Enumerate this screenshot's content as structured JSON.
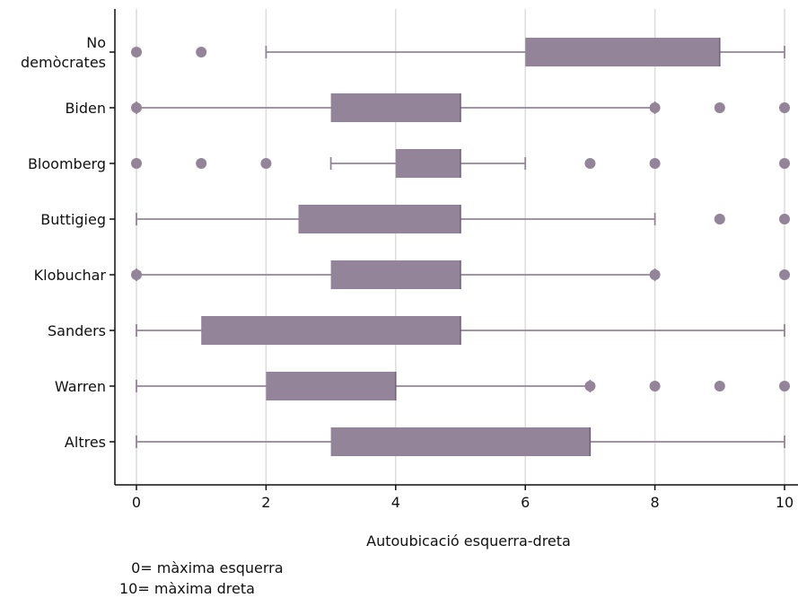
{
  "chart_data": {
    "type": "boxplot",
    "orientation": "horizontal",
    "xlabel": "Autoubicació esquerra-dreta",
    "xlim": [
      0,
      10
    ],
    "xticks": [
      0,
      2,
      4,
      6,
      8,
      10
    ],
    "grid": {
      "vertical": true,
      "horizontal": false
    },
    "color": "#94849a",
    "categories": [
      {
        "label_lines": [
          "No",
          "demòcrates"
        ],
        "whisker_low": 2,
        "q1": 6,
        "median": 9,
        "q3": 9,
        "whisker_high": 10,
        "outliers": [
          0,
          1
        ]
      },
      {
        "label_lines": [
          "Biden"
        ],
        "whisker_low": 0,
        "q1": 3,
        "median": 5,
        "q3": 5,
        "whisker_high": 8,
        "outliers": [
          0,
          8,
          9,
          10
        ]
      },
      {
        "label_lines": [
          "Bloomberg"
        ],
        "whisker_low": 3,
        "q1": 4,
        "median": 5,
        "q3": 5,
        "whisker_high": 6,
        "outliers": [
          0,
          1,
          2,
          7,
          8,
          10
        ]
      },
      {
        "label_lines": [
          "Buttigieg"
        ],
        "whisker_low": 0,
        "q1": 2.5,
        "median": 5,
        "q3": 5,
        "whisker_high": 8,
        "outliers": [
          9,
          10
        ]
      },
      {
        "label_lines": [
          "Klobuchar"
        ],
        "whisker_low": 0,
        "q1": 3,
        "median": 5,
        "q3": 5,
        "whisker_high": 8,
        "outliers": [
          0,
          8,
          10
        ]
      },
      {
        "label_lines": [
          "Sanders"
        ],
        "whisker_low": 0,
        "q1": 1,
        "median": 5,
        "q3": 5,
        "whisker_high": 10,
        "outliers": []
      },
      {
        "label_lines": [
          "Warren"
        ],
        "whisker_low": 0,
        "q1": 2,
        "median": 4,
        "q3": 4,
        "whisker_high": 7,
        "outliers": [
          7,
          8,
          9,
          10
        ]
      },
      {
        "label_lines": [
          "Altres"
        ],
        "whisker_low": 0,
        "q1": 3,
        "median": 7,
        "q3": 7,
        "whisker_high": 10,
        "outliers": []
      }
    ]
  },
  "notes": {
    "line1": " 0= màxima esquerra",
    "line2": "10= màxima dreta"
  }
}
